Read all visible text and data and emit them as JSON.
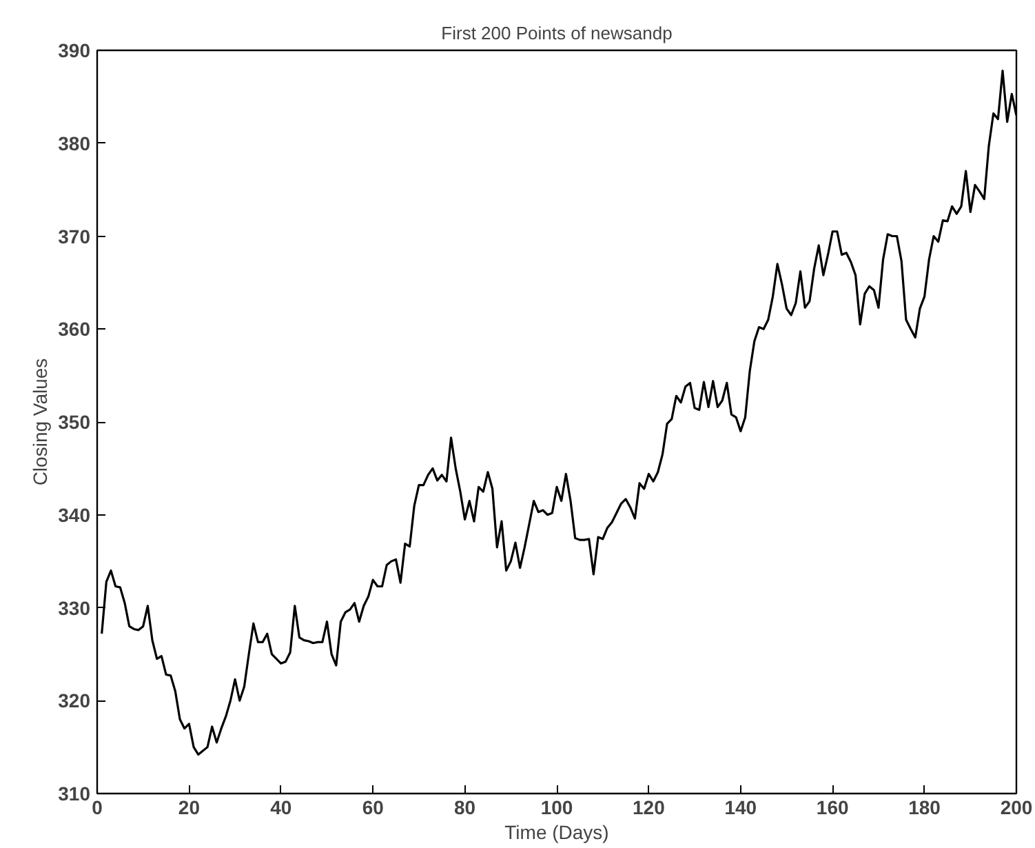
{
  "chart_data": {
    "type": "line",
    "title": "First 200 Points of newsandp",
    "xlabel": "Time (Days)",
    "ylabel": "Closing Values",
    "xlim": [
      0,
      200
    ],
    "ylim": [
      310,
      390
    ],
    "xticks": [
      0,
      20,
      40,
      60,
      80,
      100,
      120,
      140,
      160,
      180,
      200
    ],
    "yticks": [
      310,
      320,
      330,
      340,
      350,
      360,
      370,
      380,
      390
    ],
    "grid": false,
    "series": [
      {
        "color": "#000000",
        "x": [
          1,
          2,
          3,
          4,
          5,
          6,
          7,
          8,
          9,
          10,
          11,
          12,
          13,
          14,
          15,
          16,
          17,
          18,
          19,
          20,
          21,
          22,
          23,
          24,
          25,
          26,
          27,
          28,
          29,
          30,
          31,
          32,
          33,
          34,
          35,
          36,
          37,
          38,
          39,
          40,
          41,
          42,
          43,
          44,
          45,
          46,
          47,
          48,
          49,
          50,
          51,
          52,
          53,
          54,
          55,
          56,
          57,
          58,
          59,
          60,
          61,
          62,
          63,
          64,
          65,
          66,
          67,
          68,
          69,
          70,
          71,
          72,
          73,
          74,
          75,
          76,
          77,
          78,
          79,
          80,
          81,
          82,
          83,
          84,
          85,
          86,
          87,
          88,
          89,
          90,
          91,
          92,
          93,
          94,
          95,
          96,
          97,
          98,
          99,
          100,
          101,
          102,
          103,
          104,
          105,
          106,
          107,
          108,
          109,
          110,
          111,
          112,
          113,
          114,
          115,
          116,
          117,
          118,
          119,
          120,
          121,
          122,
          123,
          124,
          125,
          126,
          127,
          128,
          129,
          130,
          131,
          132,
          133,
          134,
          135,
          136,
          137,
          138,
          139,
          140,
          141,
          142,
          143,
          144,
          145,
          146,
          147,
          148,
          149,
          150,
          151,
          152,
          153,
          154,
          155,
          156,
          157,
          158,
          159,
          160,
          161,
          162,
          163,
          164,
          165,
          166,
          167,
          168,
          169,
          170,
          171,
          172,
          173,
          174,
          175,
          176,
          177,
          178,
          179,
          180,
          181,
          182,
          183,
          184,
          185,
          186,
          187,
          188,
          189,
          190,
          191,
          192,
          193,
          194,
          195,
          196,
          197,
          198,
          199,
          200
        ],
        "values": [
          327.2,
          332.8,
          334,
          332.3,
          332.2,
          330.5,
          328,
          327.7,
          327.6,
          328,
          330.2,
          326.5,
          324.5,
          324.8,
          322.8,
          322.7,
          321,
          318,
          317,
          317.5,
          315,
          314.2,
          314.6,
          315,
          317.2,
          315.5,
          317,
          318.3,
          320,
          322.3,
          320,
          321.5,
          325,
          328.3,
          326.3,
          326.3,
          327.2,
          325,
          324.5,
          324,
          324.2,
          325.2,
          330.2,
          326.8,
          326.5,
          326.4,
          326.2,
          326.3,
          326.3,
          328.5,
          325,
          323.8,
          328.5,
          329.5,
          329.8,
          330.5,
          328.5,
          330.2,
          331.2,
          333,
          332.3,
          332.3,
          334.6,
          335,
          335.2,
          332.7,
          336.9,
          336.6,
          341,
          343.2,
          343.2,
          344.3,
          345,
          343.7,
          344.3,
          343.6,
          348.3,
          345,
          342.5,
          339.5,
          341.5,
          339.3,
          343,
          342.5,
          344.6,
          342.8,
          336.5,
          339.3,
          334,
          335,
          337,
          334.3,
          336.5,
          339,
          341.5,
          340.3,
          340.5,
          340,
          340.2,
          343,
          341.5,
          344.4,
          341.5,
          337.5,
          337.3,
          337.3,
          337.4,
          333.6,
          337.6,
          337.4,
          338.6,
          339.2,
          340.2,
          341.2,
          341.7,
          340.8,
          339.6,
          343.4,
          342.8,
          344.4,
          343.6,
          344.6,
          346.5,
          349.8,
          350.3,
          352.8,
          352.1,
          353.8,
          354.2,
          351.5,
          351.3,
          354.3,
          351.6,
          354.4,
          351.6,
          352.3,
          354.2,
          350.8,
          350.5,
          349,
          350.5,
          355.5,
          358.7,
          360.2,
          360,
          361,
          363.5,
          367,
          364.8,
          362.2,
          361.5,
          362.8,
          366.2,
          362.3,
          363,
          366.5,
          369,
          365.8,
          368,
          370.5,
          370.5,
          368,
          368.2,
          367.2,
          365.8,
          360.5,
          363.8,
          364.6,
          364.2,
          362.3,
          367.5,
          370.2,
          370,
          370,
          367.3,
          361,
          360,
          359.1,
          362.2,
          363.5,
          367.5,
          370,
          369.4,
          371.7,
          371.6,
          373.2,
          372.4,
          373.2,
          377,
          372.6,
          375.5,
          374.8,
          374,
          379.7,
          383.2,
          382.6,
          387.8,
          382.3,
          385.3,
          383
        ]
      }
    ]
  }
}
